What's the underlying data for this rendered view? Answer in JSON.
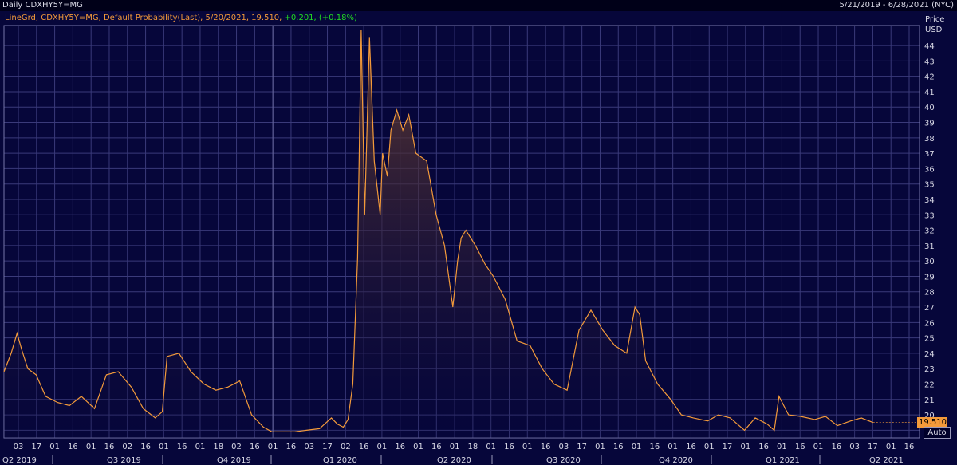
{
  "header": {
    "title_left": "Daily CDXHY5Y=MG",
    "title_right": "5/21/2019 - 6/28/2021 (NYC)"
  },
  "legend": {
    "series_text": "LineGrd, CDXHY5Y=MG, Default Probability(Last), 5/20/2021, 19.510,",
    "change_text": "+0.201, (+0.18%)"
  },
  "axis": {
    "price_label": "Price",
    "currency_label": "USD",
    "auto_label": "Auto",
    "last_value_label": "19.510"
  },
  "colors": {
    "background": "#06063a",
    "grid": "#3a3a7a",
    "line": "#f39a3a",
    "change_positive": "#22dd22"
  },
  "chart_data": {
    "type": "area",
    "title": "LineGrd, CDXHY5Y=MG, Default Probability(Last), 5/20/2021, 19.510, +0.201, (+0.18%)",
    "ylabel": "Price USD",
    "ylim": [
      18.5,
      45.3
    ],
    "y_ticks": [
      19,
      20,
      21,
      22,
      23,
      24,
      25,
      26,
      27,
      28,
      29,
      30,
      31,
      32,
      33,
      34,
      35,
      36,
      37,
      38,
      39,
      40,
      41,
      42,
      43,
      44
    ],
    "grid": true,
    "x_day_labels": [
      "03",
      "17",
      "01",
      "16",
      "01",
      "16",
      "02",
      "16",
      "01",
      "16",
      "01",
      "18",
      "02",
      "16",
      "01",
      "16",
      "03",
      "17",
      "02",
      "16",
      "01",
      "16",
      "01",
      "16",
      "01",
      "18",
      "01",
      "16",
      "01",
      "16",
      "03",
      "17",
      "01",
      "16",
      "01",
      "16",
      "01",
      "16",
      "01",
      "17",
      "01",
      "16",
      "01",
      "16",
      "01",
      "16",
      "03",
      "17",
      "01",
      "16"
    ],
    "x_quarter_labels": [
      "Q2 2019",
      "Q3 2019",
      "Q4 2019",
      "Q1 2020",
      "Q2 2020",
      "Q3 2020",
      "Q4 2020",
      "Q1 2021",
      "Q2 2021"
    ],
    "last_value": 19.51,
    "series": [
      {
        "x": [
          "2019-05-21",
          "2019-05-27",
          "2019-06-01",
          "2019-06-05",
          "2019-06-10",
          "2019-06-17",
          "2019-06-25",
          "2019-07-05",
          "2019-07-15",
          "2019-07-25",
          "2019-08-05",
          "2019-08-15",
          "2019-08-25",
          "2019-09-05",
          "2019-09-15",
          "2019-09-25",
          "2019-10-01",
          "2019-10-05",
          "2019-10-15",
          "2019-10-25",
          "2019-11-05",
          "2019-11-15",
          "2019-11-25",
          "2019-12-05",
          "2019-12-15",
          "2019-12-25",
          "2020-01-01",
          "2020-01-10",
          "2020-01-20",
          "2020-01-30",
          "2020-02-10",
          "2020-02-20",
          "2020-02-25",
          "2020-03-01",
          "2020-03-05",
          "2020-03-09",
          "2020-03-13",
          "2020-03-16",
          "2020-03-19",
          "2020-03-23",
          "2020-03-27",
          "2020-04-01",
          "2020-04-03",
          "2020-04-07",
          "2020-04-10",
          "2020-04-15",
          "2020-04-20",
          "2020-04-25",
          "2020-05-01",
          "2020-05-10",
          "2020-05-18",
          "2020-05-25",
          "2020-06-01",
          "2020-06-05",
          "2020-06-08",
          "2020-06-12",
          "2020-06-20",
          "2020-06-28",
          "2020-07-05",
          "2020-07-15",
          "2020-07-25",
          "2020-08-05",
          "2020-08-15",
          "2020-08-25",
          "2020-09-05",
          "2020-09-15",
          "2020-09-25",
          "2020-10-05",
          "2020-10-15",
          "2020-10-25",
          "2020-11-01",
          "2020-11-05",
          "2020-11-10",
          "2020-11-20",
          "2020-12-01",
          "2020-12-10",
          "2020-12-20",
          "2021-01-01",
          "2021-01-10",
          "2021-01-20",
          "2021-02-01",
          "2021-02-10",
          "2021-02-20",
          "2021-02-26",
          "2021-03-02",
          "2021-03-10",
          "2021-03-20",
          "2021-04-01",
          "2021-04-10",
          "2021-04-20",
          "2021-05-01",
          "2021-05-10",
          "2021-05-20"
        ],
        "y": [
          22.8,
          24.0,
          25.3,
          24.2,
          23.0,
          22.6,
          21.2,
          20.8,
          20.6,
          21.2,
          20.4,
          22.6,
          22.8,
          21.8,
          20.4,
          19.8,
          20.2,
          23.8,
          24.0,
          22.8,
          22.0,
          21.6,
          21.8,
          22.2,
          20.0,
          19.2,
          18.9,
          18.9,
          18.9,
          19.0,
          19.1,
          19.8,
          19.4,
          19.2,
          19.7,
          22.0,
          30.2,
          45.0,
          33.0,
          44.5,
          36.5,
          33.0,
          37.0,
          35.5,
          38.5,
          39.8,
          38.5,
          39.5,
          37.0,
          36.5,
          33.0,
          31.0,
          27.0,
          30.0,
          31.5,
          32.0,
          31.0,
          29.8,
          29.0,
          27.5,
          24.8,
          24.5,
          23.0,
          22.0,
          21.6,
          25.5,
          26.8,
          25.5,
          24.5,
          24.0,
          27.0,
          26.5,
          23.5,
          22.0,
          21.0,
          20.0,
          19.8,
          19.6,
          20.0,
          19.8,
          19.0,
          19.8,
          19.4,
          19.0,
          21.2,
          20.0,
          19.9,
          19.7,
          19.9,
          19.3,
          19.6,
          19.8,
          19.5
        ]
      }
    ]
  }
}
